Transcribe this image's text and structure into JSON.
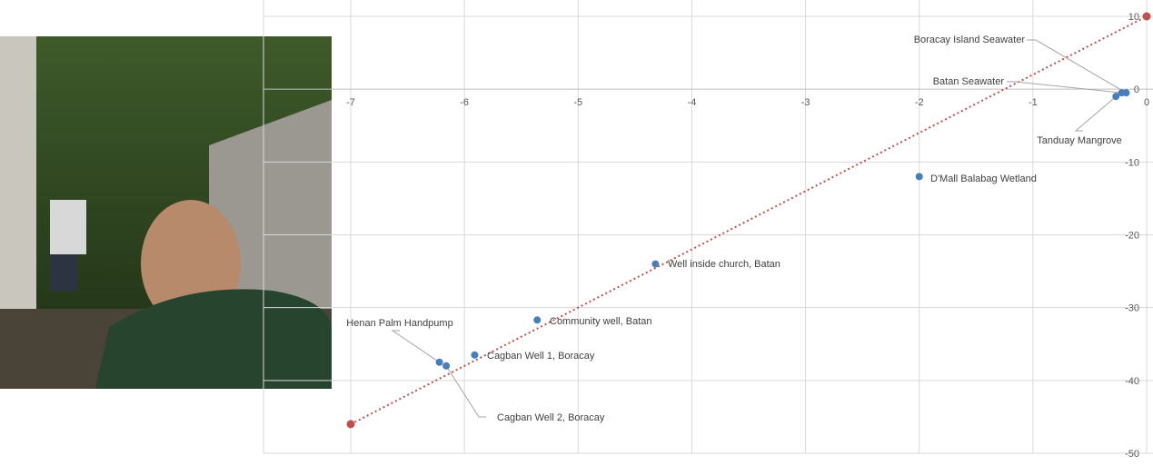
{
  "photo": {
    "description_icon": "selfie-photo"
  },
  "chart_data": {
    "type": "scatter",
    "title": "",
    "xlabel": "",
    "ylabel": "",
    "xlim": [
      -7,
      0
    ],
    "ylim": [
      -50,
      10
    ],
    "x_ticks": [
      -7,
      -6,
      -5,
      -4,
      -3,
      -2,
      -1,
      0
    ],
    "y_ticks": [
      10,
      0,
      -10,
      -20,
      -30,
      -40,
      -50
    ],
    "grid": true,
    "series": [
      {
        "color": "#4a7ebb",
        "points": [
          {
            "label": "Boracay Island Seawater",
            "x": -0.18,
            "y": -0.5
          },
          {
            "label": "Batan Seawater",
            "x": -0.22,
            "y": -0.5
          },
          {
            "label": "Tanduay Mangrove",
            "x": -0.27,
            "y": -1
          },
          {
            "label": "D'Mall Balabag Wetland",
            "x": -2.0,
            "y": -12
          },
          {
            "label": "Well inside church, Batan",
            "x": -4.32,
            "y": -24
          },
          {
            "label": "Community well, Batan",
            "x": -5.36,
            "y": -31.7
          },
          {
            "label": "Cagban Well 1, Boracay",
            "x": -5.91,
            "y": -36.5
          },
          {
            "label": "Henan Palm Handpump",
            "x": -6.22,
            "y": -37.5
          },
          {
            "label": "Cagban Well 2, Boracay",
            "x": -6.16,
            "y": -38
          }
        ]
      },
      {
        "color": "#c0504d",
        "line_style": "dotted",
        "points": [
          {
            "x": -7,
            "y": -46
          },
          {
            "x": 0,
            "y": 10
          }
        ]
      }
    ]
  }
}
